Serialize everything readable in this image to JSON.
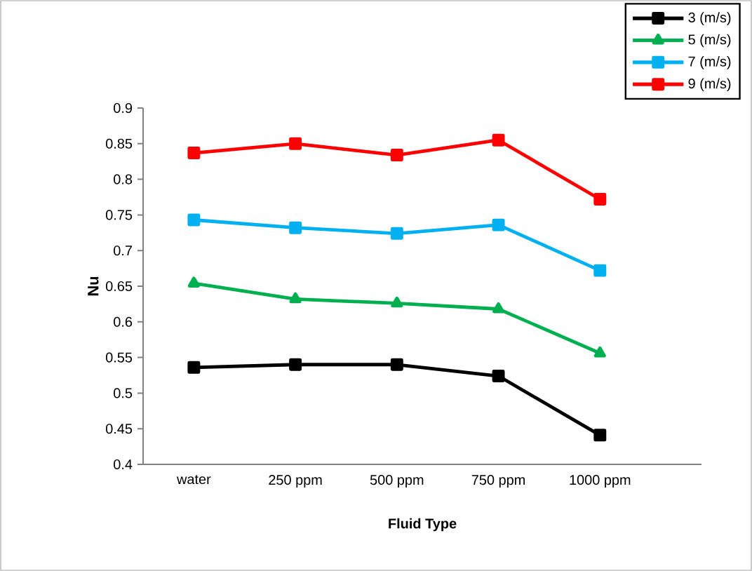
{
  "chart_data": {
    "type": "line",
    "xlabel": "Fluid Type",
    "ylabel": "Nu",
    "categories": [
      "water",
      "250 ppm",
      "500 ppm",
      "750 ppm",
      "1000 ppm"
    ],
    "series": [
      {
        "name": "3 (m/s)",
        "color": "#000000",
        "marker": "square",
        "values": [
          0.536,
          0.54,
          0.54,
          0.524,
          0.441
        ]
      },
      {
        "name": "5 (m/s)",
        "color": "#00b050",
        "marker": "triangle",
        "values": [
          0.654,
          0.632,
          0.626,
          0.618,
          0.556
        ]
      },
      {
        "name": "7 (m/s)",
        "color": "#00b0f0",
        "marker": "square",
        "values": [
          0.743,
          0.732,
          0.724,
          0.736,
          0.672
        ]
      },
      {
        "name": "9 (m/s)",
        "color": "#ff0000",
        "marker": "square",
        "values": [
          0.837,
          0.85,
          0.834,
          0.855,
          0.772
        ]
      }
    ],
    "ylim": [
      0.4,
      0.9
    ],
    "yticks": [
      0.4,
      0.45,
      0.5,
      0.55,
      0.6,
      0.65,
      0.7,
      0.75,
      0.8,
      0.85,
      0.9
    ],
    "grid": false,
    "legend": "top right",
    "line_style": "solid"
  }
}
